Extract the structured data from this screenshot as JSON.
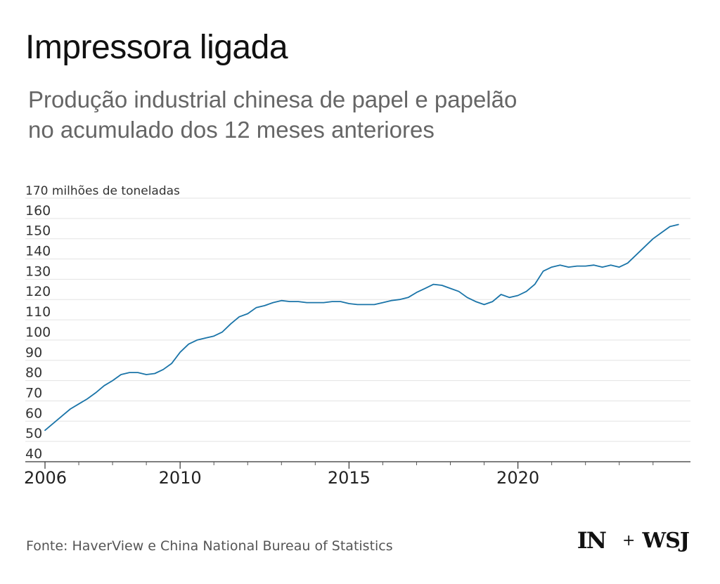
{
  "header": {
    "title": "Impressora ligada",
    "subtitle_line1": "Produção industrial chinesa de papel e papelão",
    "subtitle_line2": "no acumulado dos 12 meses anteriores"
  },
  "footer": {
    "source": "Fonte: HaverView e China National Bureau of Statistics",
    "logo_in": "IN",
    "logo_plus": "+",
    "logo_wsj": "WSJ"
  },
  "colors": {
    "line": "#1a74a8",
    "grid": "#e3e3e3",
    "axis_text": "#333333"
  },
  "chart_data": {
    "type": "line",
    "title": "Impressora ligada",
    "subtitle": "Produção industrial chinesa de papel e papelão no acumulado dos 12 meses anteriores",
    "ylabel": "170 milhões de toneladas",
    "xlabel": "",
    "ylim": [
      40,
      170
    ],
    "xlim": [
      2006.0,
      2024.9
    ],
    "yticks": [
      {
        "value": 170,
        "label": "170 milhões de toneladas"
      },
      {
        "value": 160,
        "label": "160"
      },
      {
        "value": 150,
        "label": "150"
      },
      {
        "value": 140,
        "label": "140"
      },
      {
        "value": 130,
        "label": "130"
      },
      {
        "value": 120,
        "label": "120"
      },
      {
        "value": 110,
        "label": "110"
      },
      {
        "value": 100,
        "label": "100"
      },
      {
        "value": 90,
        "label": "90"
      },
      {
        "value": 80,
        "label": "80"
      },
      {
        "value": 70,
        "label": "70"
      },
      {
        "value": 60,
        "label": "60"
      },
      {
        "value": 50,
        "label": "50"
      },
      {
        "value": 40,
        "label": "40"
      }
    ],
    "xtick_labels": [
      {
        "value": 2006,
        "label": "2006"
      },
      {
        "value": 2010,
        "label": "2010"
      },
      {
        "value": 2015,
        "label": "2015"
      },
      {
        "value": 2020,
        "label": "2020"
      }
    ],
    "xtick_minor": [
      2007,
      2008,
      2009,
      2011,
      2012,
      2013,
      2014,
      2016,
      2017,
      2018,
      2019,
      2021,
      2022,
      2023,
      2024
    ],
    "grid": true,
    "series": [
      {
        "x": [
          2006.0,
          2006.25,
          2006.5,
          2006.75,
          2007.0,
          2007.25,
          2007.5,
          2007.75,
          2008.0,
          2008.25,
          2008.5,
          2008.75,
          2009.0,
          2009.25,
          2009.5,
          2009.75,
          2010.0,
          2010.25,
          2010.5,
          2010.75,
          2011.0,
          2011.25,
          2011.5,
          2011.75,
          2012.0,
          2012.25,
          2012.5,
          2012.75,
          2013.0,
          2013.25,
          2013.5,
          2013.75,
          2014.0,
          2014.25,
          2014.5,
          2014.75,
          2015.0,
          2015.25,
          2015.5,
          2015.75,
          2016.0,
          2016.25,
          2016.5,
          2016.75,
          2017.0,
          2017.25,
          2017.5,
          2017.75,
          2018.0,
          2018.25,
          2018.5,
          2018.75,
          2019.0,
          2019.25,
          2019.5,
          2019.75,
          2020.0,
          2020.25,
          2020.5,
          2020.75,
          2021.0,
          2021.25,
          2021.5,
          2021.75,
          2022.0,
          2022.25,
          2022.5,
          2022.75,
          2023.0,
          2023.25,
          2023.5,
          2023.75,
          2024.0,
          2024.25,
          2024.5,
          2024.75
        ],
        "values": [
          55.5,
          59,
          62.5,
          66,
          68.5,
          71,
          74,
          77.5,
          80,
          83,
          84,
          84,
          83,
          83.5,
          85.5,
          88.5,
          94,
          98,
          100,
          101,
          102,
          104,
          108,
          111.5,
          113,
          116,
          117,
          118.5,
          119.5,
          119,
          119,
          118.5,
          118.5,
          118.5,
          119,
          119,
          118,
          117.5,
          117.5,
          117.5,
          118.5,
          119.5,
          120,
          121,
          123.5,
          125.5,
          127.5,
          127,
          125.5,
          124,
          121,
          119,
          117.5,
          119,
          122.5,
          121,
          122,
          124,
          127.5,
          134,
          136,
          137,
          136,
          136.5,
          136.5,
          137,
          136,
          137,
          136,
          138,
          142,
          146,
          150,
          153,
          156,
          157
        ]
      }
    ]
  }
}
